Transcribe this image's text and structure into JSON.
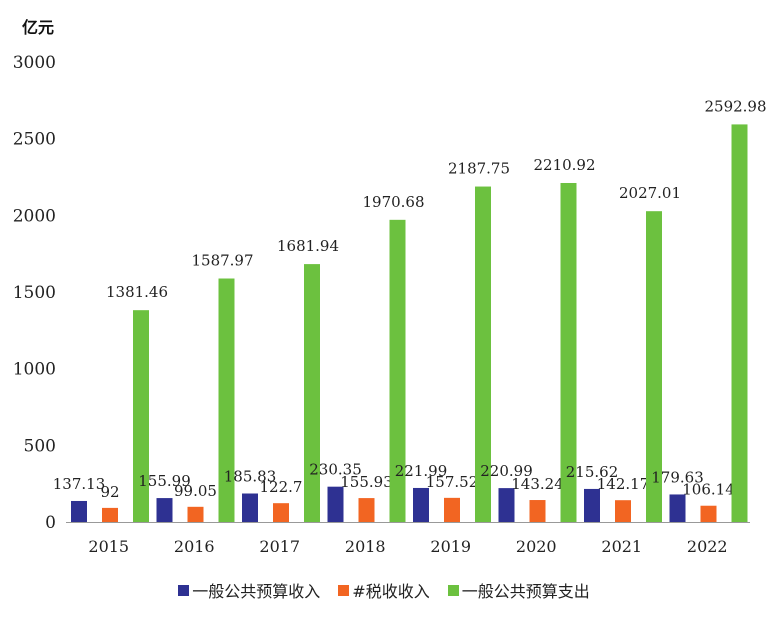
{
  "chart_data": {
    "type": "bar",
    "unit_label": "亿元",
    "categories": [
      "2015",
      "2016",
      "2017",
      "2018",
      "2019",
      "2020",
      "2021",
      "2022"
    ],
    "series": [
      {
        "name": "一般公共预算收入",
        "color": "#2e3192",
        "values": [
          137.13,
          155.99,
          185.83,
          230.35,
          221.99,
          220.99,
          215.62,
          179.63
        ],
        "labels": [
          "137.13",
          "155.99",
          "185.83",
          "230.35",
          "221.99",
          "220.99",
          "215.62",
          "179.63"
        ]
      },
      {
        "name": "#税收收入",
        "color": "#f26522",
        "values": [
          92,
          99.05,
          122.7,
          155.93,
          157.52,
          143.24,
          142.17,
          106.14
        ],
        "labels": [
          "92",
          "99.05",
          "122.7",
          "155.93",
          "157.52",
          "143.24",
          "142.17",
          "106.14"
        ]
      },
      {
        "name": "一般公共预算支出",
        "color": "#6cc13f",
        "values": [
          1381.46,
          1587.97,
          1681.94,
          1970.68,
          2187.75,
          2210.92,
          2027.01,
          2592.98
        ],
        "labels": [
          "1381.46",
          "1587.97",
          "1681.94",
          "1970.68",
          "2187.75",
          "2210.92",
          "2027.01",
          "2592.98"
        ]
      }
    ],
    "yticks": [
      "0",
      "500",
      "1000",
      "1500",
      "2000",
      "2500",
      "3000"
    ],
    "ylim": [
      0,
      3000
    ],
    "grid": false,
    "legend_position": "bottom"
  }
}
